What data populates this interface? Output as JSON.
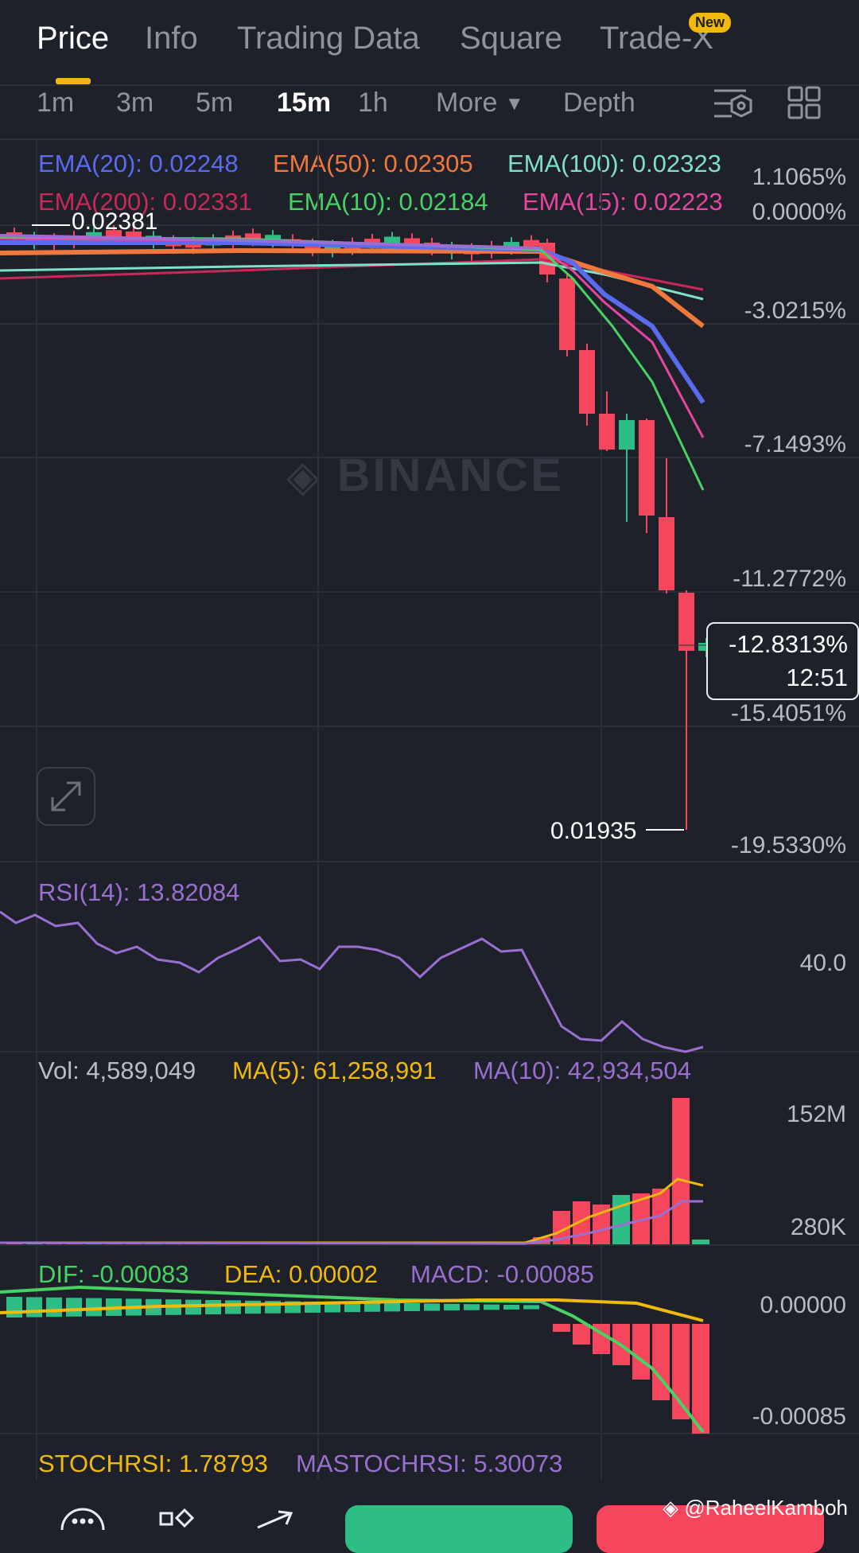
{
  "tabs": [
    {
      "label": "Price",
      "active": true
    },
    {
      "label": "Info"
    },
    {
      "label": "Trading Data"
    },
    {
      "label": "Square"
    },
    {
      "label": "Trade-X"
    }
  ],
  "new_badge": "New",
  "timeframes": [
    "1m",
    "3m",
    "5m",
    "15m",
    "1h",
    "More",
    "Depth"
  ],
  "active_timeframe": "15m",
  "ema_legend": [
    {
      "text": "EMA(20): 0.02248",
      "color": "#5a6bf0"
    },
    {
      "text": "EMA(50): 0.02305",
      "color": "#f0783c"
    },
    {
      "text": "EMA(100): 0.02323",
      "color": "#7ee0c8"
    },
    {
      "text": "EMA(200): 0.02331",
      "color": "#c8285a"
    },
    {
      "text": "EMA(10): 0.02184",
      "color": "#46d264"
    },
    {
      "text": "EMA(15): 0.02223",
      "color": "#e646a0"
    }
  ],
  "price_axis": [
    "1.1065%",
    "0.0000%",
    "-3.0215%",
    "-7.1493%",
    "-11.2772%",
    "-15.4051%",
    "-19.5330%"
  ],
  "high_label": "0.02381",
  "low_label": "0.01935",
  "watermark": "BINANCE",
  "current_price": {
    "pct": "-12.8313%",
    "countdown": "12:51"
  },
  "rsi": {
    "label": "RSI(14): 13.82084",
    "axis": "40.0",
    "color": "#9b6fd2"
  },
  "volume": {
    "legend": [
      {
        "text": "Vol: 4,589,049",
        "color": "#b7bdc6"
      },
      {
        "text": "MA(5): 61,258,991",
        "color": "#f0b90b"
      },
      {
        "text": "MA(10): 42,934,504",
        "color": "#9b6fd2"
      }
    ],
    "axis_top": "152M",
    "axis_bottom": "280K"
  },
  "macd": {
    "legend": [
      {
        "text": "DIF: -0.00083",
        "color": "#46d264"
      },
      {
        "text": "DEA: 0.00002",
        "color": "#f0b90b"
      },
      {
        "text": "MACD: -0.00085",
        "color": "#9b6fd2"
      }
    ],
    "axis_top": "0.00000",
    "axis_bottom": "-0.00085"
  },
  "stochrsi": {
    "legend": [
      {
        "text": "STOCHRSI: 1.78793",
        "color": "#f0b90b"
      },
      {
        "text": "MASTOCHRSI: 5.30073",
        "color": "#9b6fd2"
      }
    ]
  },
  "colors": {
    "up": "#2ebd85",
    "down": "#f6465d",
    "accent": "#f0b90b",
    "bg": "#1e2129"
  },
  "credit": "@RaheelKamboh",
  "icons": [
    "chart-settings-icon",
    "layout-grid-icon",
    "expand-icon",
    "more-icon",
    "grid-icon",
    "share-icon",
    "binance-logo-icon"
  ]
}
